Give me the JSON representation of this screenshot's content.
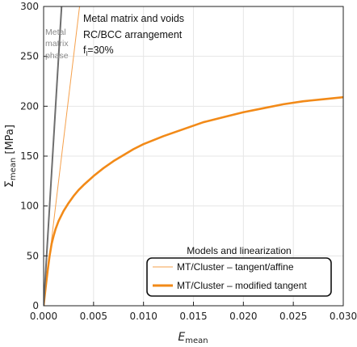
{
  "chart_data": {
    "type": "line",
    "title": "",
    "xlabel": "E",
    "xlabel_sub": "mean",
    "ylabel": "Σ",
    "ylabel_sub": "mean",
    "ylabel_unit": " [MPa]",
    "xlim": [
      0,
      0.03
    ],
    "ylim": [
      0,
      300
    ],
    "x_ticks": [
      0.0,
      0.005,
      0.01,
      0.015,
      0.02,
      0.025,
      0.03
    ],
    "x_tick_labels": [
      "0.000",
      "0.005",
      "0.010",
      "0.015",
      "0.020",
      "0.025",
      "0.030"
    ],
    "y_ticks": [
      0,
      50,
      100,
      150,
      200,
      250,
      300
    ],
    "y_tick_labels": [
      "0",
      "50",
      "100",
      "150",
      "200",
      "250",
      "300"
    ],
    "grid": true,
    "series": [
      {
        "name": "MT/Cluster – tangent/affine",
        "color": "#f5a04b",
        "x": [
          0.0,
          0.0036
        ],
        "y": [
          0,
          300
        ]
      },
      {
        "name": "MT/Cluster – modified tangent",
        "color": "#f28a18",
        "x": [
          0.0,
          0.0002,
          0.0004,
          0.0006,
          0.0008,
          0.001,
          0.0012,
          0.0015,
          0.002,
          0.0025,
          0.003,
          0.0035,
          0.004,
          0.005,
          0.006,
          0.007,
          0.008,
          0.009,
          0.01,
          0.012,
          0.014,
          0.016,
          0.018,
          0.02,
          0.022,
          0.024,
          0.026,
          0.028,
          0.03
        ],
        "y": [
          0,
          18,
          35,
          50,
          62,
          70,
          77,
          85,
          95,
          103,
          110,
          116,
          121,
          130,
          138,
          145,
          151,
          157,
          162,
          170,
          177,
          184,
          189,
          194,
          198,
          202,
          205,
          207,
          209
        ]
      },
      {
        "name": "",
        "color": "#6e6e6e",
        "x": [
          0.0,
          0.0018
        ],
        "y": [
          0,
          300
        ]
      }
    ],
    "legend": {
      "title": "Models and linearization",
      "placement": "bottom-right"
    },
    "annotations": {
      "main_lines": [
        "Metal matrix and voids",
        "RC/BCC arrangement"
      ],
      "fraction_base": "f",
      "fraction_sub": "l",
      "fraction_value": "=30%",
      "phase_lines": [
        "Metal",
        "matrix",
        "phase"
      ]
    }
  }
}
